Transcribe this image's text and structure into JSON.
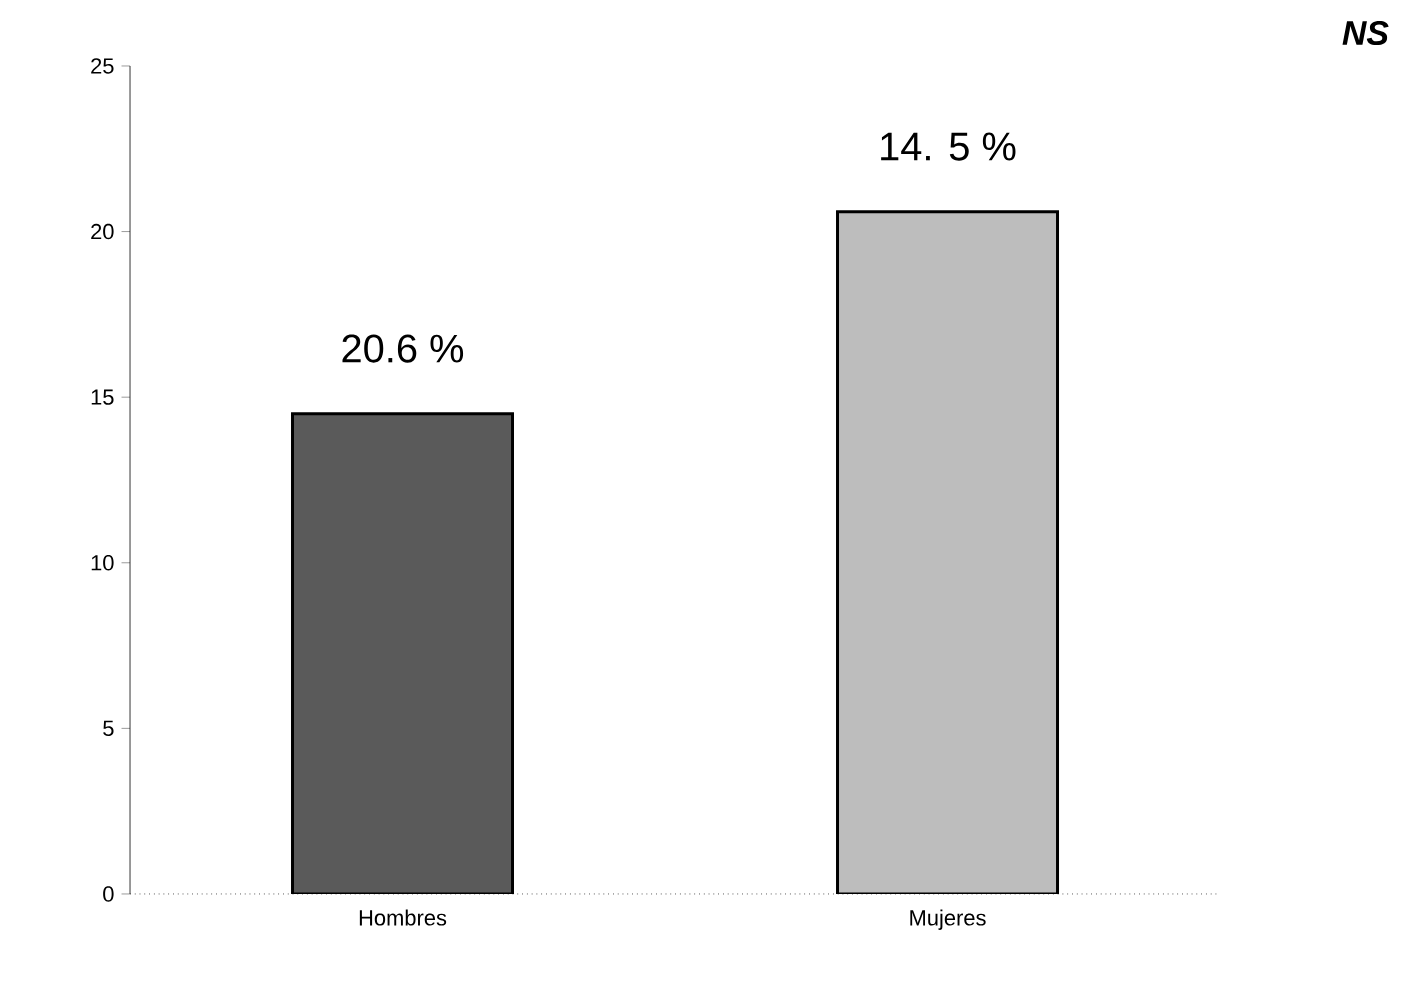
{
  "chart_data": {
    "type": "bar",
    "categories": [
      "Hombres",
      "Mujeres"
    ],
    "values": [
      14.5,
      20.6
    ],
    "colors": [
      "#5a5a5a",
      "#bdbdbd"
    ],
    "annotations": [
      "20.6 %",
      "14. 5 %",
      "NS"
    ],
    "ylim": [
      0,
      25
    ],
    "yticks": [
      0,
      5,
      10,
      15,
      20,
      25
    ]
  }
}
